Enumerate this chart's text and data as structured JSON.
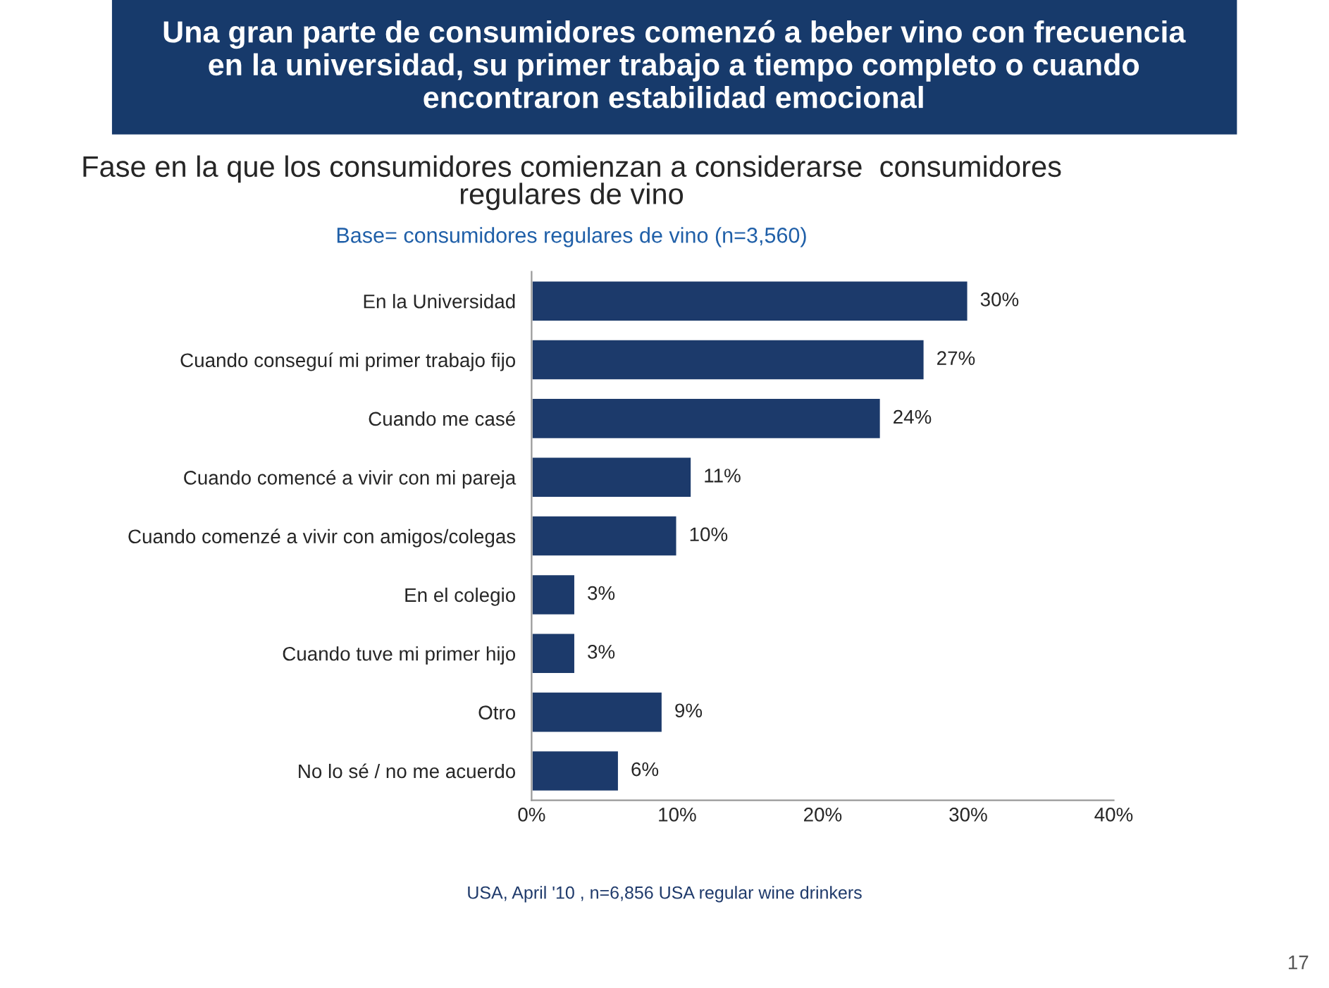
{
  "chart_data": {
    "type": "bar",
    "orientation": "horizontal",
    "title": "Una gran parte de consumidores comenzó a beber vino con frecuencia\nen la universidad, su primer trabajo a tiempo completo o cuando\nencontraron estabilidad emocional",
    "subtitle": "Fase en la que los consumidores comienzan a considerarse  consumidores\nregulares de vino",
    "categories": [
      "En la Universidad",
      "Cuando conseguí mi primer trabajo fijo",
      "Cuando me casé",
      "Cuando comencé a vivir con mi pareja",
      "Cuando comenzé a vivir con amigos/colegas",
      "En el colegio",
      "Cuando tuve mi primer hijo",
      "Otro",
      "No lo sé / no me acuerdo"
    ],
    "values": [
      30,
      27,
      24,
      11,
      10,
      3,
      3,
      9,
      6
    ],
    "value_labels": [
      "30%",
      "27%",
      "24%",
      "11%",
      "10%",
      "3%",
      "3%",
      "9%",
      "6%"
    ],
    "color": "#1c3a6b",
    "xlim": [
      0,
      40
    ],
    "xticks": [
      {
        "value": 0,
        "label": "0%"
      },
      {
        "value": 10,
        "label": "10%"
      },
      {
        "value": 20,
        "label": "20%"
      },
      {
        "value": 30,
        "label": "30%"
      },
      {
        "value": 40,
        "label": "40%"
      }
    ],
    "grid": false,
    "legend": false,
    "annotations": [
      "Base= consumidores regulares de vino (n=3,560)",
      "USA, April '10 , n=6,856 USA regular wine drinkers",
      "17"
    ]
  }
}
